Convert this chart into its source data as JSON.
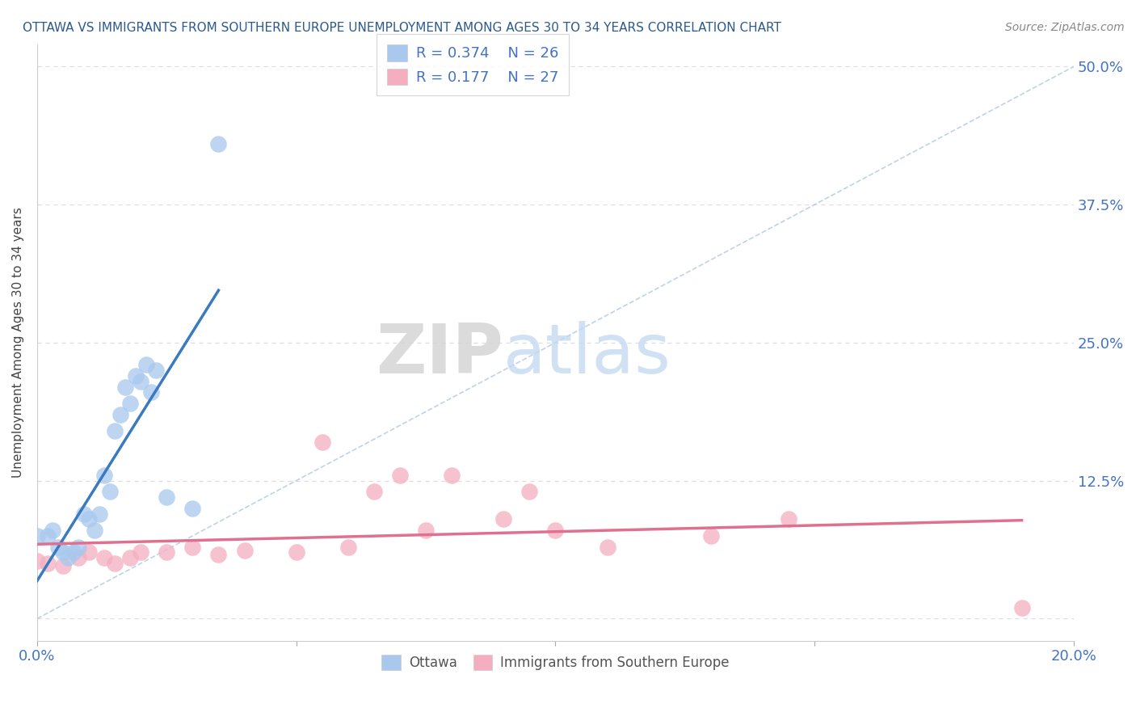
{
  "title": "OTTAWA VS IMMIGRANTS FROM SOUTHERN EUROPE UNEMPLOYMENT AMONG AGES 30 TO 34 YEARS CORRELATION CHART",
  "source": "Source: ZipAtlas.com",
  "ylabel": "Unemployment Among Ages 30 to 34 years",
  "xlim": [
    0.0,
    0.2
  ],
  "ylim": [
    -0.02,
    0.52
  ],
  "yticks_right": [
    0.0,
    0.125,
    0.25,
    0.375,
    0.5
  ],
  "ytick_labels_right": [
    "",
    "12.5%",
    "25.0%",
    "37.5%",
    "50.0%"
  ],
  "xticks": [
    0.0,
    0.05,
    0.1,
    0.15,
    0.2
  ],
  "xtick_labels": [
    "0.0%",
    "",
    "",
    "",
    "20.0%"
  ],
  "ottawa_color": "#a8c8ee",
  "immigrant_color": "#f4aec0",
  "ottawa_line_color": "#3a7abf",
  "immigrant_line_color": "#e07090",
  "ottawa_R": 0.374,
  "ottawa_N": 26,
  "immigrant_R": 0.177,
  "immigrant_N": 27,
  "background_color": "#ffffff",
  "title_color": "#2c5a8f",
  "axis_color": "#4472c4",
  "grid_color": "#dddddd",
  "diag_color": "#b0c8e0",
  "ottawa_points_x": [
    0.0,
    0.002,
    0.003,
    0.004,
    0.005,
    0.006,
    0.007,
    0.008,
    0.009,
    0.01,
    0.011,
    0.012,
    0.013,
    0.014,
    0.015,
    0.016,
    0.017,
    0.018,
    0.019,
    0.02,
    0.021,
    0.022,
    0.023,
    0.025,
    0.03,
    0.035
  ],
  "ottawa_points_y": [
    0.075,
    0.075,
    0.08,
    0.065,
    0.06,
    0.055,
    0.06,
    0.065,
    0.095,
    0.09,
    0.08,
    0.095,
    0.13,
    0.115,
    0.17,
    0.185,
    0.21,
    0.195,
    0.22,
    0.215,
    0.23,
    0.205,
    0.225,
    0.11,
    0.1,
    0.43
  ],
  "immigrant_points_x": [
    0.0,
    0.002,
    0.005,
    0.008,
    0.01,
    0.013,
    0.015,
    0.018,
    0.02,
    0.025,
    0.03,
    0.035,
    0.04,
    0.05,
    0.055,
    0.06,
    0.065,
    0.07,
    0.075,
    0.08,
    0.09,
    0.095,
    0.1,
    0.11,
    0.13,
    0.145,
    0.19
  ],
  "immigrant_points_y": [
    0.052,
    0.05,
    0.048,
    0.055,
    0.06,
    0.055,
    0.05,
    0.055,
    0.06,
    0.06,
    0.065,
    0.058,
    0.062,
    0.06,
    0.16,
    0.065,
    0.115,
    0.13,
    0.08,
    0.13,
    0.09,
    0.115,
    0.08,
    0.065,
    0.075,
    0.09,
    0.01
  ]
}
